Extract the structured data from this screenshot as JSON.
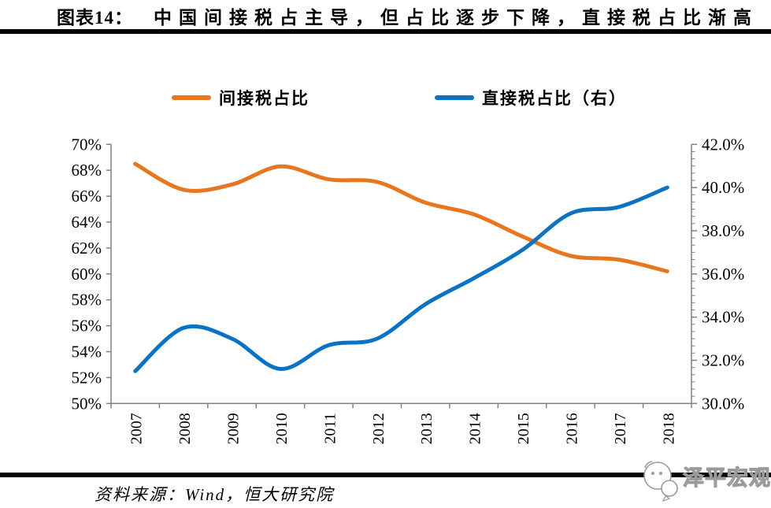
{
  "header": {
    "fig_label": "图表14：",
    "title": "中国间接税占主导，但占比逐步下降，直接税占比渐高"
  },
  "legend": {
    "items": [
      {
        "label": "间接税占比",
        "color": "#E8761F"
      },
      {
        "label": "直接税占比（右）",
        "color": "#0C72C4"
      }
    ]
  },
  "chart_data": {
    "type": "line",
    "title": "中国间接税占主导，但占比逐步下降，直接税占比渐高",
    "categories": [
      "2007",
      "2008",
      "2009",
      "2010",
      "2011",
      "2012",
      "2013",
      "2014",
      "2015",
      "2016",
      "2017",
      "2018"
    ],
    "series": [
      {
        "name": "间接税占比",
        "axis": "left",
        "color": "#E8761F",
        "values": [
          68.5,
          66.5,
          66.9,
          68.3,
          67.3,
          67.1,
          65.5,
          64.6,
          62.9,
          61.4,
          61.1,
          60.2
        ]
      },
      {
        "name": "直接税占比（右）",
        "axis": "right",
        "color": "#0C72C4",
        "values": [
          31.5,
          33.5,
          33.0,
          31.6,
          32.7,
          33.0,
          34.6,
          35.8,
          37.1,
          38.8,
          39.1,
          40.0
        ]
      }
    ],
    "left_axis": {
      "min": 50,
      "max": 70,
      "major_step": 2,
      "labels": [
        "70%",
        "68%",
        "66%",
        "64%",
        "62%",
        "60%",
        "58%",
        "56%",
        "54%",
        "52%",
        "50%"
      ]
    },
    "right_axis": {
      "min": 30,
      "max": 42,
      "major_step": 2,
      "minor_per_major": 6,
      "labels": [
        "42.0%",
        "40.0%",
        "38.0%",
        "36.0%",
        "34.0%",
        "32.0%",
        "30.0%"
      ]
    },
    "grid": false,
    "legend_position": "top",
    "axis_color": "#808080",
    "smooth": true
  },
  "footer": {
    "source": "资料来源：Wind，恒大研究院",
    "watermark": "泽平宏观"
  }
}
